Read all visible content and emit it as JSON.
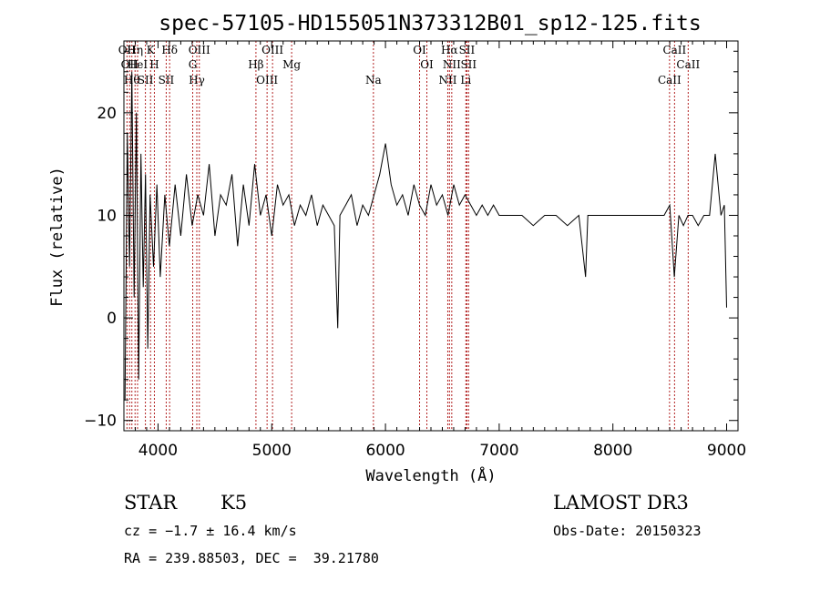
{
  "chart_data": {
    "type": "line",
    "title": "spec-57105-HD155051N373312B01_sp12-125.fits",
    "xlabel": "Wavelength (Å)",
    "ylabel": "Flux (relative)",
    "xlim": [
      3700,
      9100
    ],
    "ylim": [
      -11,
      27
    ],
    "xticks": [
      4000,
      5000,
      6000,
      7000,
      8000,
      9000
    ],
    "yticks": [
      -10,
      0,
      10,
      20
    ],
    "grid": false,
    "series": [
      {
        "name": "flux",
        "x": [
          3710,
          3730,
          3750,
          3770,
          3790,
          3810,
          3830,
          3850,
          3870,
          3890,
          3910,
          3930,
          3960,
          3990,
          4020,
          4060,
          4100,
          4150,
          4200,
          4250,
          4300,
          4350,
          4400,
          4450,
          4500,
          4550,
          4600,
          4650,
          4700,
          4750,
          4800,
          4850,
          4900,
          4950,
          5000,
          5050,
          5100,
          5150,
          5200,
          5250,
          5300,
          5350,
          5400,
          5450,
          5500,
          5550,
          5580,
          5600,
          5650,
          5700,
          5750,
          5800,
          5850,
          5900,
          5950,
          6000,
          6050,
          6100,
          6150,
          6200,
          6250,
          6300,
          6350,
          6400,
          6450,
          6500,
          6550,
          6600,
          6650,
          6700,
          6750,
          6800,
          6850,
          6900,
          6950,
          7000,
          7100,
          7200,
          7300,
          7400,
          7500,
          7600,
          7700,
          7760,
          7780,
          7800,
          7900,
          8000,
          8100,
          8200,
          8300,
          8400,
          8450,
          8500,
          8540,
          8580,
          8620,
          8660,
          8700,
          8750,
          8800,
          8850,
          8900,
          8950,
          8980,
          9000
        ],
        "values": [
          -8,
          18,
          5,
          24,
          2,
          20,
          -6,
          16,
          3,
          14,
          -3,
          12,
          5,
          13,
          4,
          12,
          7,
          13,
          8,
          14,
          9,
          12,
          10,
          15,
          8,
          12,
          11,
          14,
          7,
          13,
          9,
          15,
          10,
          12,
          8,
          13,
          11,
          12,
          9,
          11,
          10,
          12,
          9,
          11,
          10,
          9,
          -1,
          10,
          11,
          12,
          9,
          11,
          10,
          12,
          14,
          17,
          13,
          11,
          12,
          10,
          13,
          11,
          10,
          13,
          11,
          12,
          10,
          13,
          11,
          12,
          11,
          10,
          11,
          10,
          11,
          10,
          10,
          10,
          9,
          10,
          10,
          9,
          10,
          4,
          10,
          10,
          10,
          10,
          10,
          10,
          10,
          10,
          10,
          11,
          4,
          10,
          9,
          10,
          10,
          9,
          10,
          10,
          16,
          10,
          11,
          1
        ]
      }
    ],
    "line_markers": [
      {
        "wave": 3727,
        "label": "OII"
      },
      {
        "wave": 3750,
        "label": "OII"
      },
      {
        "wave": 3770,
        "label": "Hθ"
      },
      {
        "wave": 3798,
        "label": "Hη"
      },
      {
        "wave": 3820,
        "label": "HeI"
      },
      {
        "wave": 3889,
        "label": "SII"
      },
      {
        "wave": 3934,
        "label": "K"
      },
      {
        "wave": 3968,
        "label": "H"
      },
      {
        "wave": 4072,
        "label": "SII"
      },
      {
        "wave": 4102,
        "label": "Hδ"
      },
      {
        "wave": 4305,
        "label": "G"
      },
      {
        "wave": 4341,
        "label": "Hγ"
      },
      {
        "wave": 4363,
        "label": "OIII"
      },
      {
        "wave": 4861,
        "label": "Hβ"
      },
      {
        "wave": 4959,
        "label": "OIII"
      },
      {
        "wave": 5007,
        "label": "OIII"
      },
      {
        "wave": 5175,
        "label": "Mg"
      },
      {
        "wave": 5894,
        "label": "Na"
      },
      {
        "wave": 6300,
        "label": "OI"
      },
      {
        "wave": 6364,
        "label": "OI"
      },
      {
        "wave": 6548,
        "label": "NII"
      },
      {
        "wave": 6563,
        "label": "Hα"
      },
      {
        "wave": 6583,
        "label": "NII"
      },
      {
        "wave": 6707,
        "label": "Li"
      },
      {
        "wave": 6716,
        "label": "SII"
      },
      {
        "wave": 6731,
        "label": "SII"
      },
      {
        "wave": 8498,
        "label": "CaII"
      },
      {
        "wave": 8542,
        "label": "CaII"
      },
      {
        "wave": 8662,
        "label": "CaII"
      }
    ],
    "marker_color": "#b22222"
  },
  "info": {
    "object_class": "STAR",
    "subclass": "K5",
    "survey": "LAMOST DR3",
    "cz": "cz = −1.7 ± 16.4 km/s",
    "obs_date": "Obs-Date: 20150323",
    "coords": "RA = 239.88503, DEC =  39.21780"
  }
}
